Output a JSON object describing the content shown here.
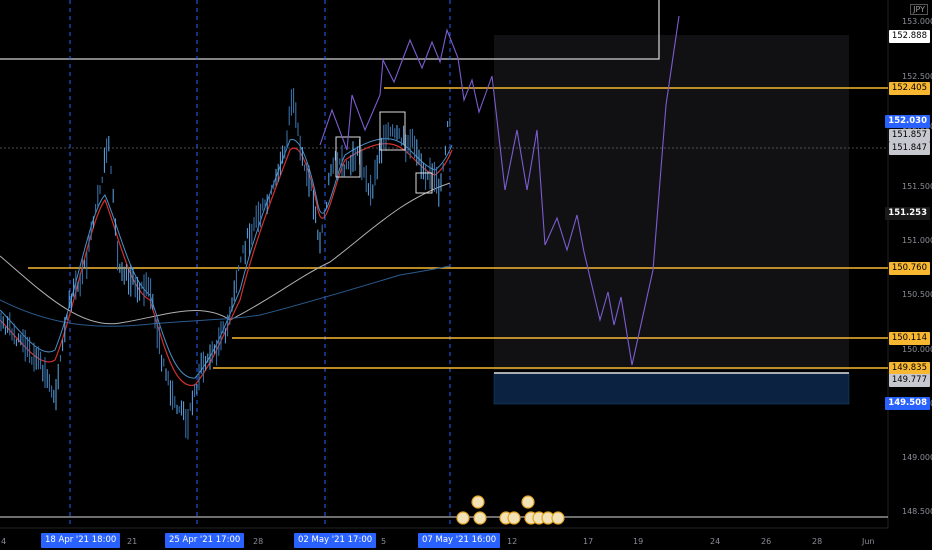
{
  "currency": "JPY",
  "price_axis": {
    "ticks": [
      "153.000",
      "152.500",
      "152.000",
      "151.500",
      "151.000",
      "150.500",
      "150.000",
      "149.500",
      "149.000",
      "148.500"
    ],
    "labels": [
      {
        "value": "152.888",
        "style": "white"
      },
      {
        "value": "152.405",
        "style": "orange"
      },
      {
        "value": "152.030",
        "style": "blue"
      },
      {
        "value": "151.857",
        "style": "gray"
      },
      {
        "value": "151.847",
        "style": "gray"
      },
      {
        "value": "151.253",
        "style": "dark"
      },
      {
        "value": "150.760",
        "style": "orange"
      },
      {
        "value": "150.114",
        "style": "orange"
      },
      {
        "value": "149.835",
        "style": "orange"
      },
      {
        "value": "149.777",
        "style": "gray"
      },
      {
        "value": "149.508",
        "style": "blue"
      }
    ]
  },
  "time_axis": {
    "ticks": [
      "4",
      "21",
      "28",
      "5",
      "12",
      "17",
      "19",
      "24",
      "26",
      "28",
      "Jun"
    ],
    "highlighted": [
      "18 Apr '21  18:00",
      "25 Apr '21  17:00",
      "02 May '21  17:00",
      "07 May '21  16:00"
    ]
  },
  "colors": {
    "background": "#000000",
    "orange_level": "#f7b731",
    "blue_label": "#2962ff",
    "projection": "#7b5ccf",
    "ma_red": "#d0312d",
    "ma_blue": "#2a5a8c"
  }
}
